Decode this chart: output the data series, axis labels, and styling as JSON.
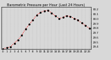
{
  "title": "Barometric Pressure per Hour (Last 24 Hours)",
  "background_color": "#d8d8d8",
  "plot_bg_color": "#d8d8d8",
  "line_color": "#ff0000",
  "marker_color": "#000000",
  "ylim": [
    29.35,
    30.25
  ],
  "xlim": [
    -0.5,
    23.5
  ],
  "ytick_labels": [
    "29.4",
    "29.5",
    "29.6",
    "29.7",
    "29.8",
    "29.9",
    "30.0",
    "30.1",
    "30.2"
  ],
  "ytick_values": [
    29.4,
    29.5,
    29.6,
    29.7,
    29.8,
    29.9,
    30.0,
    30.1,
    30.2
  ],
  "hours": [
    0,
    1,
    2,
    3,
    4,
    5,
    6,
    7,
    8,
    9,
    10,
    11,
    12,
    13,
    14,
    15,
    16,
    17,
    18,
    19,
    20,
    21,
    22,
    23
  ],
  "pressure": [
    29.36,
    29.38,
    29.4,
    29.48,
    29.55,
    29.65,
    29.78,
    29.88,
    29.98,
    30.08,
    30.14,
    30.17,
    30.18,
    30.13,
    30.06,
    30.01,
    30.03,
    30.07,
    30.05,
    30.01,
    29.97,
    29.91,
    29.86,
    29.8
  ],
  "title_fontsize": 3.5,
  "tick_fontsize": 2.8,
  "grid_color": "#aaaaaa",
  "grid_style": "dotted",
  "linewidth": 0.7,
  "markersize": 2.0
}
